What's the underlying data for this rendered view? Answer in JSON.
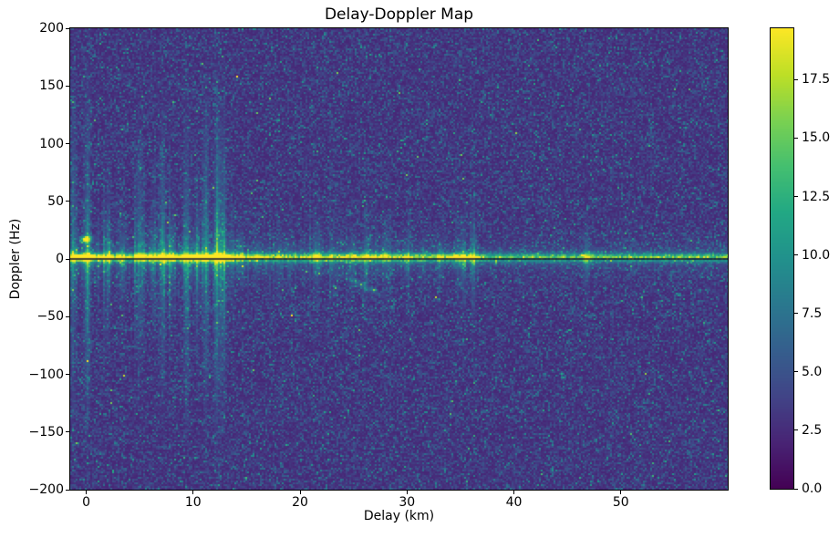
{
  "window": {
    "background": "#ffffff"
  },
  "chart_data": {
    "type": "heatmap",
    "title": "Delay-Doppler Map",
    "xlabel": "Delay (km)",
    "ylabel": "Doppler (Hz)",
    "xlim": [
      -1.5,
      60
    ],
    "ylim": [
      -200,
      200
    ],
    "grid": false,
    "xticks": {
      "values": [
        0,
        10,
        20,
        30,
        40,
        50
      ],
      "labels": [
        "0",
        "10",
        "20",
        "30",
        "40",
        "50"
      ]
    },
    "yticks": {
      "values": [
        -200,
        -150,
        -100,
        -50,
        0,
        50,
        100,
        150,
        200
      ],
      "labels": [
        "−200",
        "−150",
        "−100",
        "−50",
        "0",
        "50",
        "100",
        "150",
        "200"
      ]
    },
    "colorbar": {
      "position": "right",
      "vmin": 0.0,
      "vmax": 19.7,
      "tick_values": [
        0.0,
        2.5,
        5.0,
        7.5,
        10.0,
        12.5,
        15.0,
        17.5
      ],
      "tick_labels": [
        "0.0",
        "2.5",
        "5.0",
        "7.5",
        "10.0",
        "12.5",
        "15.0",
        "17.5"
      ]
    },
    "colormap": {
      "name": "viridis",
      "stop_positions": [
        0.0,
        0.1,
        0.2,
        0.3,
        0.4,
        0.5,
        0.6,
        0.7,
        0.8,
        0.9,
        1.0
      ],
      "stop_colors": [
        "#440154",
        "#482475",
        "#414487",
        "#355f8d",
        "#2a788e",
        "#21918c",
        "#22a884",
        "#44bf70",
        "#7ad151",
        "#bddf26",
        "#fde725"
      ]
    },
    "background_noise": {
      "mean_level": 3.7,
      "base_level": 2.1,
      "spread": 1.5,
      "texture": "fine speckle"
    },
    "zero_doppler_line": {
      "doppler_hz": 0,
      "color": "#0b0b33"
    },
    "zero_doppler_band": {
      "center_doppler_hz": 1.2,
      "core_half_width_hz": 4,
      "wing_scale_hz": 7.5,
      "delay_km": [
        -1.0,
        0.0,
        1.0,
        2.0,
        3.0,
        4.0,
        5.0,
        6.0,
        7.0,
        8.0,
        9.0,
        10.0,
        11.0,
        12.0,
        13.0,
        14.0,
        15.0,
        16.0,
        17.0,
        18.0,
        19.0,
        20.0,
        21.0,
        21.6,
        22.0,
        23.0,
        24.0,
        25.0,
        26.0,
        27.0,
        28.0,
        29.0,
        30.0,
        31.0,
        32.0,
        33.0,
        34.0,
        35.0,
        36.0,
        37.0,
        38.0,
        40.0,
        42.0,
        44.0,
        46.0,
        46.8,
        48.0,
        50.0,
        52.0,
        54.0,
        56.0,
        58.0,
        59.5
      ],
      "peak_value": [
        15.0,
        19.0,
        14.0,
        14.5,
        13.0,
        12.5,
        14.0,
        13.0,
        16.0,
        14.0,
        17.0,
        15.5,
        18.0,
        19.5,
        17.0,
        13.0,
        11.5,
        12.0,
        11.0,
        10.5,
        10.0,
        10.5,
        11.0,
        15.0,
        11.0,
        10.5,
        11.0,
        12.0,
        13.0,
        12.0,
        13.5,
        11.0,
        12.5,
        10.5,
        10.0,
        11.0,
        12.0,
        14.0,
        13.0,
        10.0,
        9.5,
        9.0,
        9.0,
        9.5,
        9.0,
        13.0,
        9.0,
        9.0,
        8.8,
        9.0,
        8.8,
        9.0,
        8.8
      ]
    },
    "bright_point": {
      "delay_km": 0.0,
      "doppler_hz": 17,
      "value": 15
    },
    "vertical_streaks": [
      {
        "delay_km": -1.2,
        "extent_hz": 150,
        "strength": 5.0
      },
      {
        "delay_km": 0.1,
        "extent_hz": 150,
        "strength": 7.0
      },
      {
        "delay_km": 2.0,
        "extent_hz": 90,
        "strength": 5.0
      },
      {
        "delay_km": 3.4,
        "extent_hz": 70,
        "strength": 4.0
      },
      {
        "delay_km": 5.0,
        "extent_hz": 110,
        "strength": 5.0
      },
      {
        "delay_km": 6.2,
        "extent_hz": 60,
        "strength": 4.0
      },
      {
        "delay_km": 7.1,
        "extent_hz": 120,
        "strength": 6.0
      },
      {
        "delay_km": 8.0,
        "extent_hz": 70,
        "strength": 4.0
      },
      {
        "delay_km": 9.4,
        "extent_hz": 130,
        "strength": 6.0
      },
      {
        "delay_km": 10.4,
        "extent_hz": 80,
        "strength": 5.0
      },
      {
        "delay_km": 11.2,
        "extent_hz": 140,
        "strength": 6.5
      },
      {
        "delay_km": 12.2,
        "extent_hz": 150,
        "strength": 7.0
      },
      {
        "delay_km": 12.8,
        "extent_hz": 120,
        "strength": 6.0
      },
      {
        "delay_km": 13.6,
        "extent_hz": 70,
        "strength": 4.0
      },
      {
        "delay_km": 14.5,
        "extent_hz": 50,
        "strength": 3.0
      },
      {
        "delay_km": 16.0,
        "extent_hz": 40,
        "strength": 3.0
      },
      {
        "delay_km": 18.0,
        "extent_hz": 45,
        "strength": 3.0
      },
      {
        "delay_km": 21.6,
        "extent_hz": 60,
        "strength": 4.0
      },
      {
        "delay_km": 23.0,
        "extent_hz": 35,
        "strength": 2.5
      },
      {
        "delay_km": 25.0,
        "extent_hz": 40,
        "strength": 3.0
      },
      {
        "delay_km": 26.2,
        "extent_hz": 50,
        "strength": 3.5
      },
      {
        "delay_km": 28.0,
        "extent_hz": 55,
        "strength": 3.5
      },
      {
        "delay_km": 30.0,
        "extent_hz": 45,
        "strength": 3.0
      },
      {
        "delay_km": 31.5,
        "extent_hz": 35,
        "strength": 2.5
      },
      {
        "delay_km": 33.0,
        "extent_hz": 40,
        "strength": 3.0
      },
      {
        "delay_km": 35.2,
        "extent_hz": 60,
        "strength": 4.5
      },
      {
        "delay_km": 36.2,
        "extent_hz": 55,
        "strength": 4.0
      },
      {
        "delay_km": 46.8,
        "extent_hz": 45,
        "strength": 4.0
      }
    ],
    "diagonal_smear": {
      "delay_start_km": 24.3,
      "delay_end_km": 27.3,
      "doppler_start_hz": -16,
      "doppler_end_hz": -30,
      "value": 3.5
    },
    "region_envelopes": [
      {
        "delay_range_km": [
          -1.5,
          14.5
        ],
        "streak_gain": 1.0
      },
      {
        "delay_range_km": [
          14.5,
          37.0
        ],
        "streak_gain": 0.5
      },
      {
        "delay_range_km": [
          37.0,
          60.0
        ],
        "streak_gain": 0.15
      }
    ]
  }
}
